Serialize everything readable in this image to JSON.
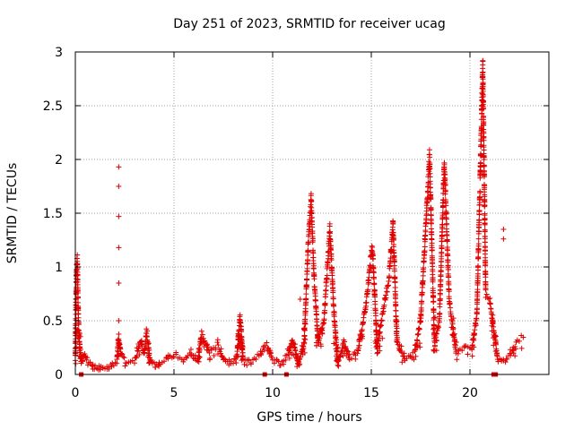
{
  "chart_data": {
    "type": "scatter",
    "title": "Day 251 of 2023, SRMTID for receiver ucag",
    "xlabel": "GPS time / hours",
    "ylabel": "SRMTID / TECUs",
    "xlim": [
      0,
      24
    ],
    "ylim": [
      0,
      3
    ],
    "xticks": [
      0,
      5,
      10,
      15,
      20
    ],
    "xtick_labels": [
      "0",
      "5",
      "10",
      "15",
      "20"
    ],
    "yticks": [
      0,
      0.5,
      1,
      1.5,
      2,
      2.5,
      3
    ],
    "ytick_labels": [
      "0",
      "0.5",
      "1",
      "1.5",
      "2",
      "2.5",
      "3"
    ],
    "grid": true,
    "marker": "+",
    "series_color": "#e00000",
    "envelope_description": "piecewise-linear envelope of SRMTID (TECU) vs GPS hour; markers sampled densely along it",
    "envelope": [
      {
        "x": 0.0,
        "y": 0.15
      },
      {
        "x": 0.05,
        "y": 0.95
      },
      {
        "x": 0.1,
        "y": 1.08
      },
      {
        "x": 0.15,
        "y": 0.55
      },
      {
        "x": 0.22,
        "y": 0.25
      },
      {
        "x": 0.3,
        "y": 0.12
      },
      {
        "x": 0.45,
        "y": 0.18
      },
      {
        "x": 0.6,
        "y": 0.14
      },
      {
        "x": 0.9,
        "y": 0.08
      },
      {
        "x": 1.3,
        "y": 0.06
      },
      {
        "x": 1.8,
        "y": 0.08
      },
      {
        "x": 2.1,
        "y": 0.12
      },
      {
        "x": 2.2,
        "y": 0.35
      },
      {
        "x": 2.3,
        "y": 0.2
      },
      {
        "x": 2.6,
        "y": 0.1
      },
      {
        "x": 3.0,
        "y": 0.12
      },
      {
        "x": 3.3,
        "y": 0.3
      },
      {
        "x": 3.5,
        "y": 0.2
      },
      {
        "x": 3.6,
        "y": 0.4
      },
      {
        "x": 3.8,
        "y": 0.12
      },
      {
        "x": 4.2,
        "y": 0.1
      },
      {
        "x": 4.6,
        "y": 0.15
      },
      {
        "x": 5.0,
        "y": 0.18
      },
      {
        "x": 5.5,
        "y": 0.14
      },
      {
        "x": 5.9,
        "y": 0.2
      },
      {
        "x": 6.2,
        "y": 0.12
      },
      {
        "x": 6.4,
        "y": 0.38
      },
      {
        "x": 6.6,
        "y": 0.3
      },
      {
        "x": 6.8,
        "y": 0.2
      },
      {
        "x": 7.2,
        "y": 0.28
      },
      {
        "x": 7.5,
        "y": 0.15
      },
      {
        "x": 8.0,
        "y": 0.12
      },
      {
        "x": 8.2,
        "y": 0.2
      },
      {
        "x": 8.35,
        "y": 0.55
      },
      {
        "x": 8.5,
        "y": 0.15
      },
      {
        "x": 9.0,
        "y": 0.12
      },
      {
        "x": 9.7,
        "y": 0.28
      },
      {
        "x": 10.0,
        "y": 0.15
      },
      {
        "x": 10.4,
        "y": 0.1
      },
      {
        "x": 10.8,
        "y": 0.2
      },
      {
        "x": 11.0,
        "y": 0.32
      },
      {
        "x": 11.3,
        "y": 0.1
      },
      {
        "x": 11.6,
        "y": 0.3
      },
      {
        "x": 11.8,
        "y": 1.2
      },
      {
        "x": 11.95,
        "y": 1.62
      },
      {
        "x": 12.1,
        "y": 0.9
      },
      {
        "x": 12.3,
        "y": 0.3
      },
      {
        "x": 12.6,
        "y": 0.5
      },
      {
        "x": 12.9,
        "y": 1.35
      },
      {
        "x": 13.1,
        "y": 0.6
      },
      {
        "x": 13.3,
        "y": 0.1
      },
      {
        "x": 13.6,
        "y": 0.3
      },
      {
        "x": 13.9,
        "y": 0.15
      },
      {
        "x": 14.3,
        "y": 0.2
      },
      {
        "x": 14.7,
        "y": 0.6
      },
      {
        "x": 15.05,
        "y": 1.2
      },
      {
        "x": 15.3,
        "y": 0.25
      },
      {
        "x": 15.6,
        "y": 0.6
      },
      {
        "x": 15.9,
        "y": 0.9
      },
      {
        "x": 16.1,
        "y": 1.4
      },
      {
        "x": 16.3,
        "y": 0.3
      },
      {
        "x": 16.7,
        "y": 0.15
      },
      {
        "x": 17.2,
        "y": 0.2
      },
      {
        "x": 17.5,
        "y": 0.5
      },
      {
        "x": 17.95,
        "y": 2.02
      },
      {
        "x": 18.2,
        "y": 0.3
      },
      {
        "x": 18.45,
        "y": 0.5
      },
      {
        "x": 18.7,
        "y": 1.98
      },
      {
        "x": 18.95,
        "y": 0.7
      },
      {
        "x": 19.3,
        "y": 0.2
      },
      {
        "x": 19.7,
        "y": 0.25
      },
      {
        "x": 20.1,
        "y": 0.25
      },
      {
        "x": 20.35,
        "y": 0.55
      },
      {
        "x": 20.65,
        "y": 2.85
      },
      {
        "x": 20.8,
        "y": 0.75
      },
      {
        "x": 21.0,
        "y": 0.7
      },
      {
        "x": 21.4,
        "y": 0.15
      },
      {
        "x": 21.8,
        "y": 0.12
      },
      {
        "x": 22.1,
        "y": 0.2
      },
      {
        "x": 22.4,
        "y": 0.3
      },
      {
        "x": 22.8,
        "y": 0.38
      }
    ],
    "isolated_points": [
      {
        "x": 2.2,
        "y": 1.93
      },
      {
        "x": 2.2,
        "y": 1.75
      },
      {
        "x": 2.2,
        "y": 1.47
      },
      {
        "x": 2.2,
        "y": 1.18
      },
      {
        "x": 2.2,
        "y": 0.85
      },
      {
        "x": 2.2,
        "y": 0.5
      },
      {
        "x": 21.7,
        "y": 1.35
      },
      {
        "x": 21.7,
        "y": 1.26
      },
      {
        "x": 16.1,
        "y": 1.4
      },
      {
        "x": 11.4,
        "y": 0.7
      }
    ],
    "zero_markers_x": [
      0.3,
      9.6,
      10.7,
      21.2,
      21.3
    ]
  }
}
